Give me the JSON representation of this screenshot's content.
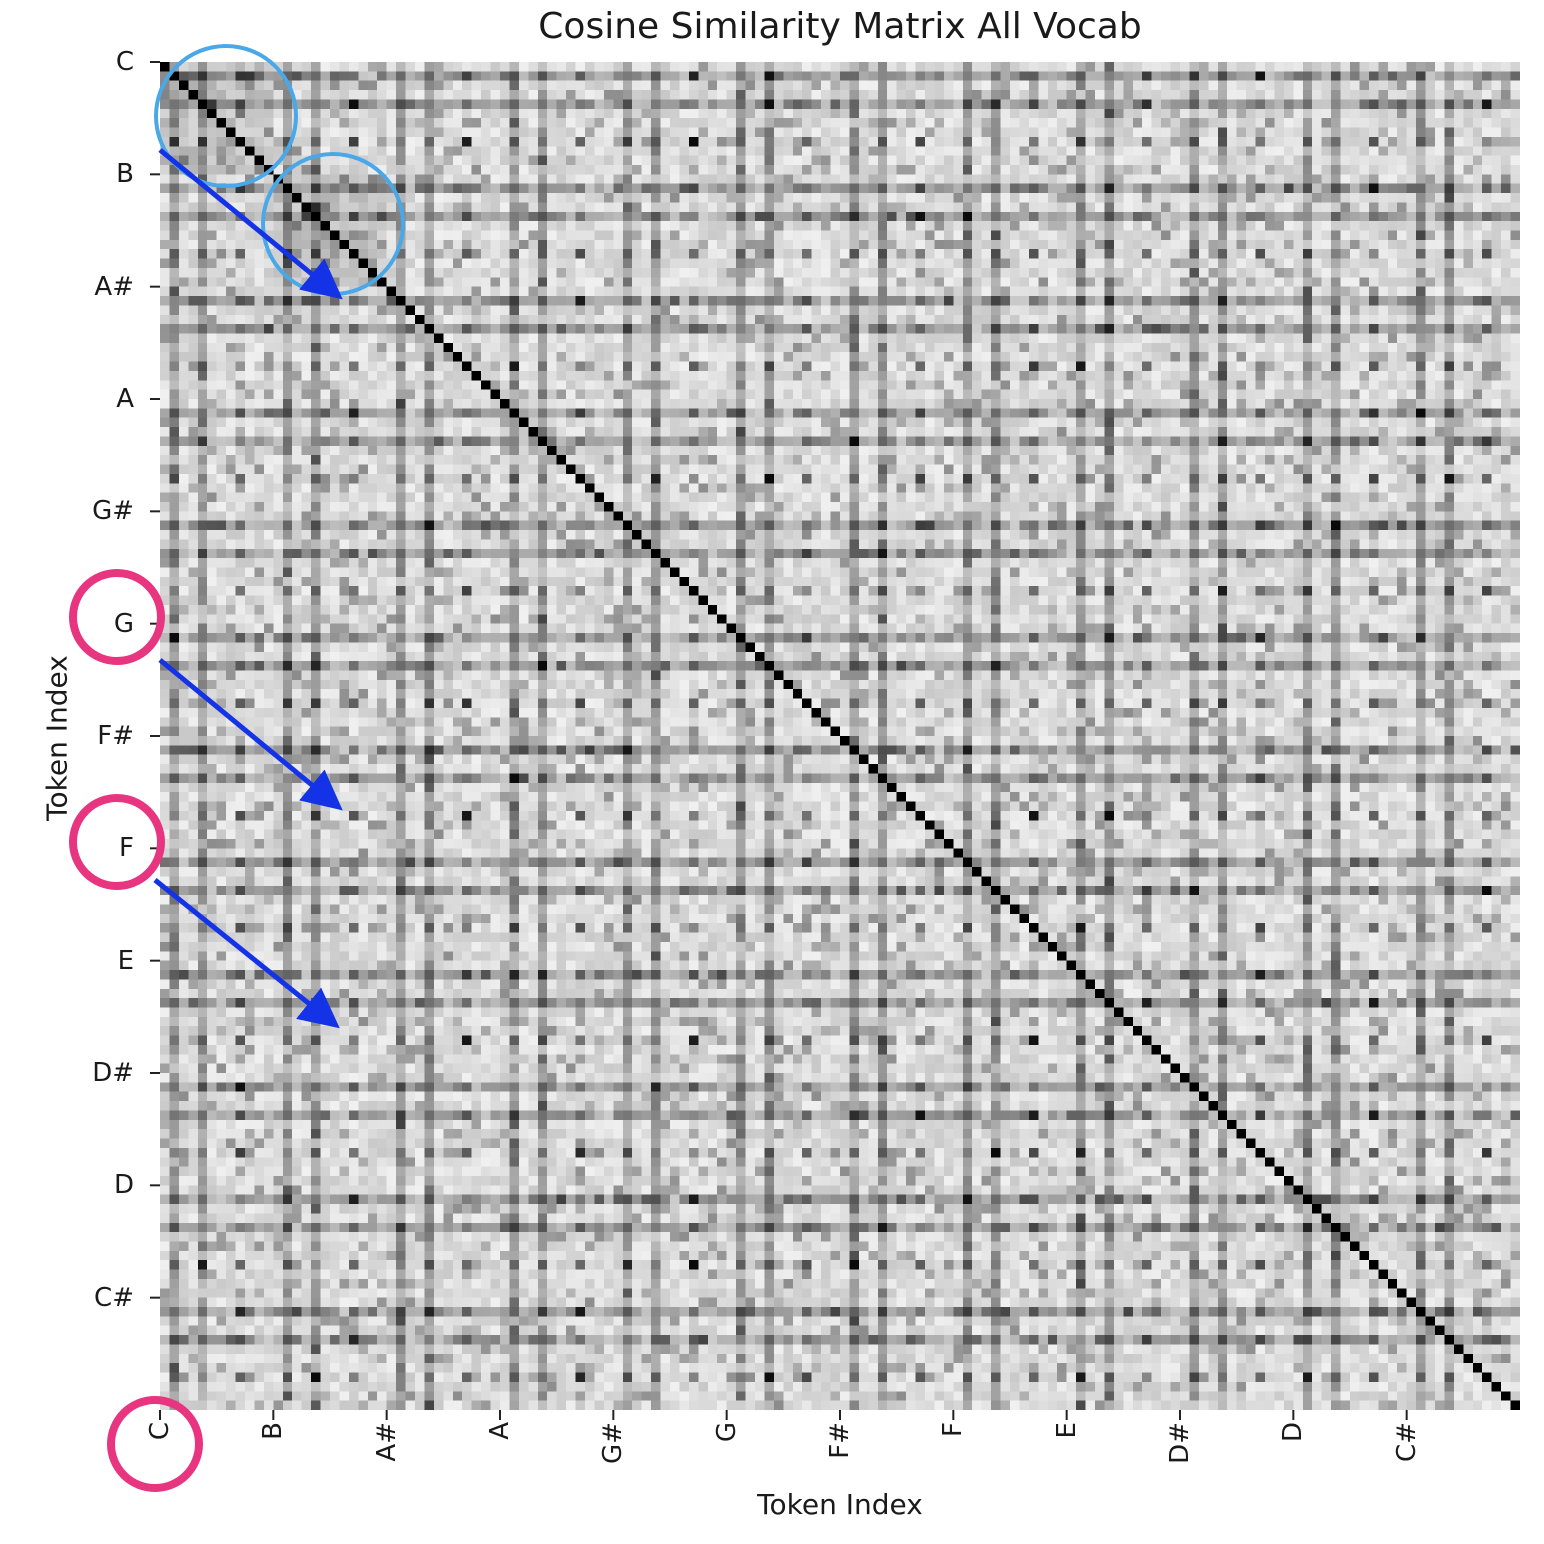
{
  "chart_data": {
    "type": "heatmap",
    "title": "Cosine Similarity Matrix All Vocab",
    "xlabel": "Token Index",
    "ylabel": "Token Index",
    "colormap": "Greys",
    "matrix_size": 144,
    "tokens_per_group": 12,
    "x_tick_labels": [
      "C",
      "B",
      "A#",
      "A",
      "G#",
      "G",
      "F#",
      "F",
      "E",
      "D#",
      "D",
      "C#"
    ],
    "y_tick_labels": [
      "C",
      "B",
      "A#",
      "A",
      "G#",
      "G",
      "F#",
      "F",
      "E",
      "D#",
      "D",
      "C#"
    ],
    "diagonal_value": 1.0,
    "annotations": {
      "blue_circles": [
        "C-C block",
        "B-B block"
      ],
      "pink_circles": [
        "G",
        "F",
        "C"
      ],
      "arrows": 3
    },
    "colors": {
      "blue_circle": "#4aa8e8",
      "pink_circle": "#e8357f",
      "arrow": "#1433e6"
    }
  }
}
